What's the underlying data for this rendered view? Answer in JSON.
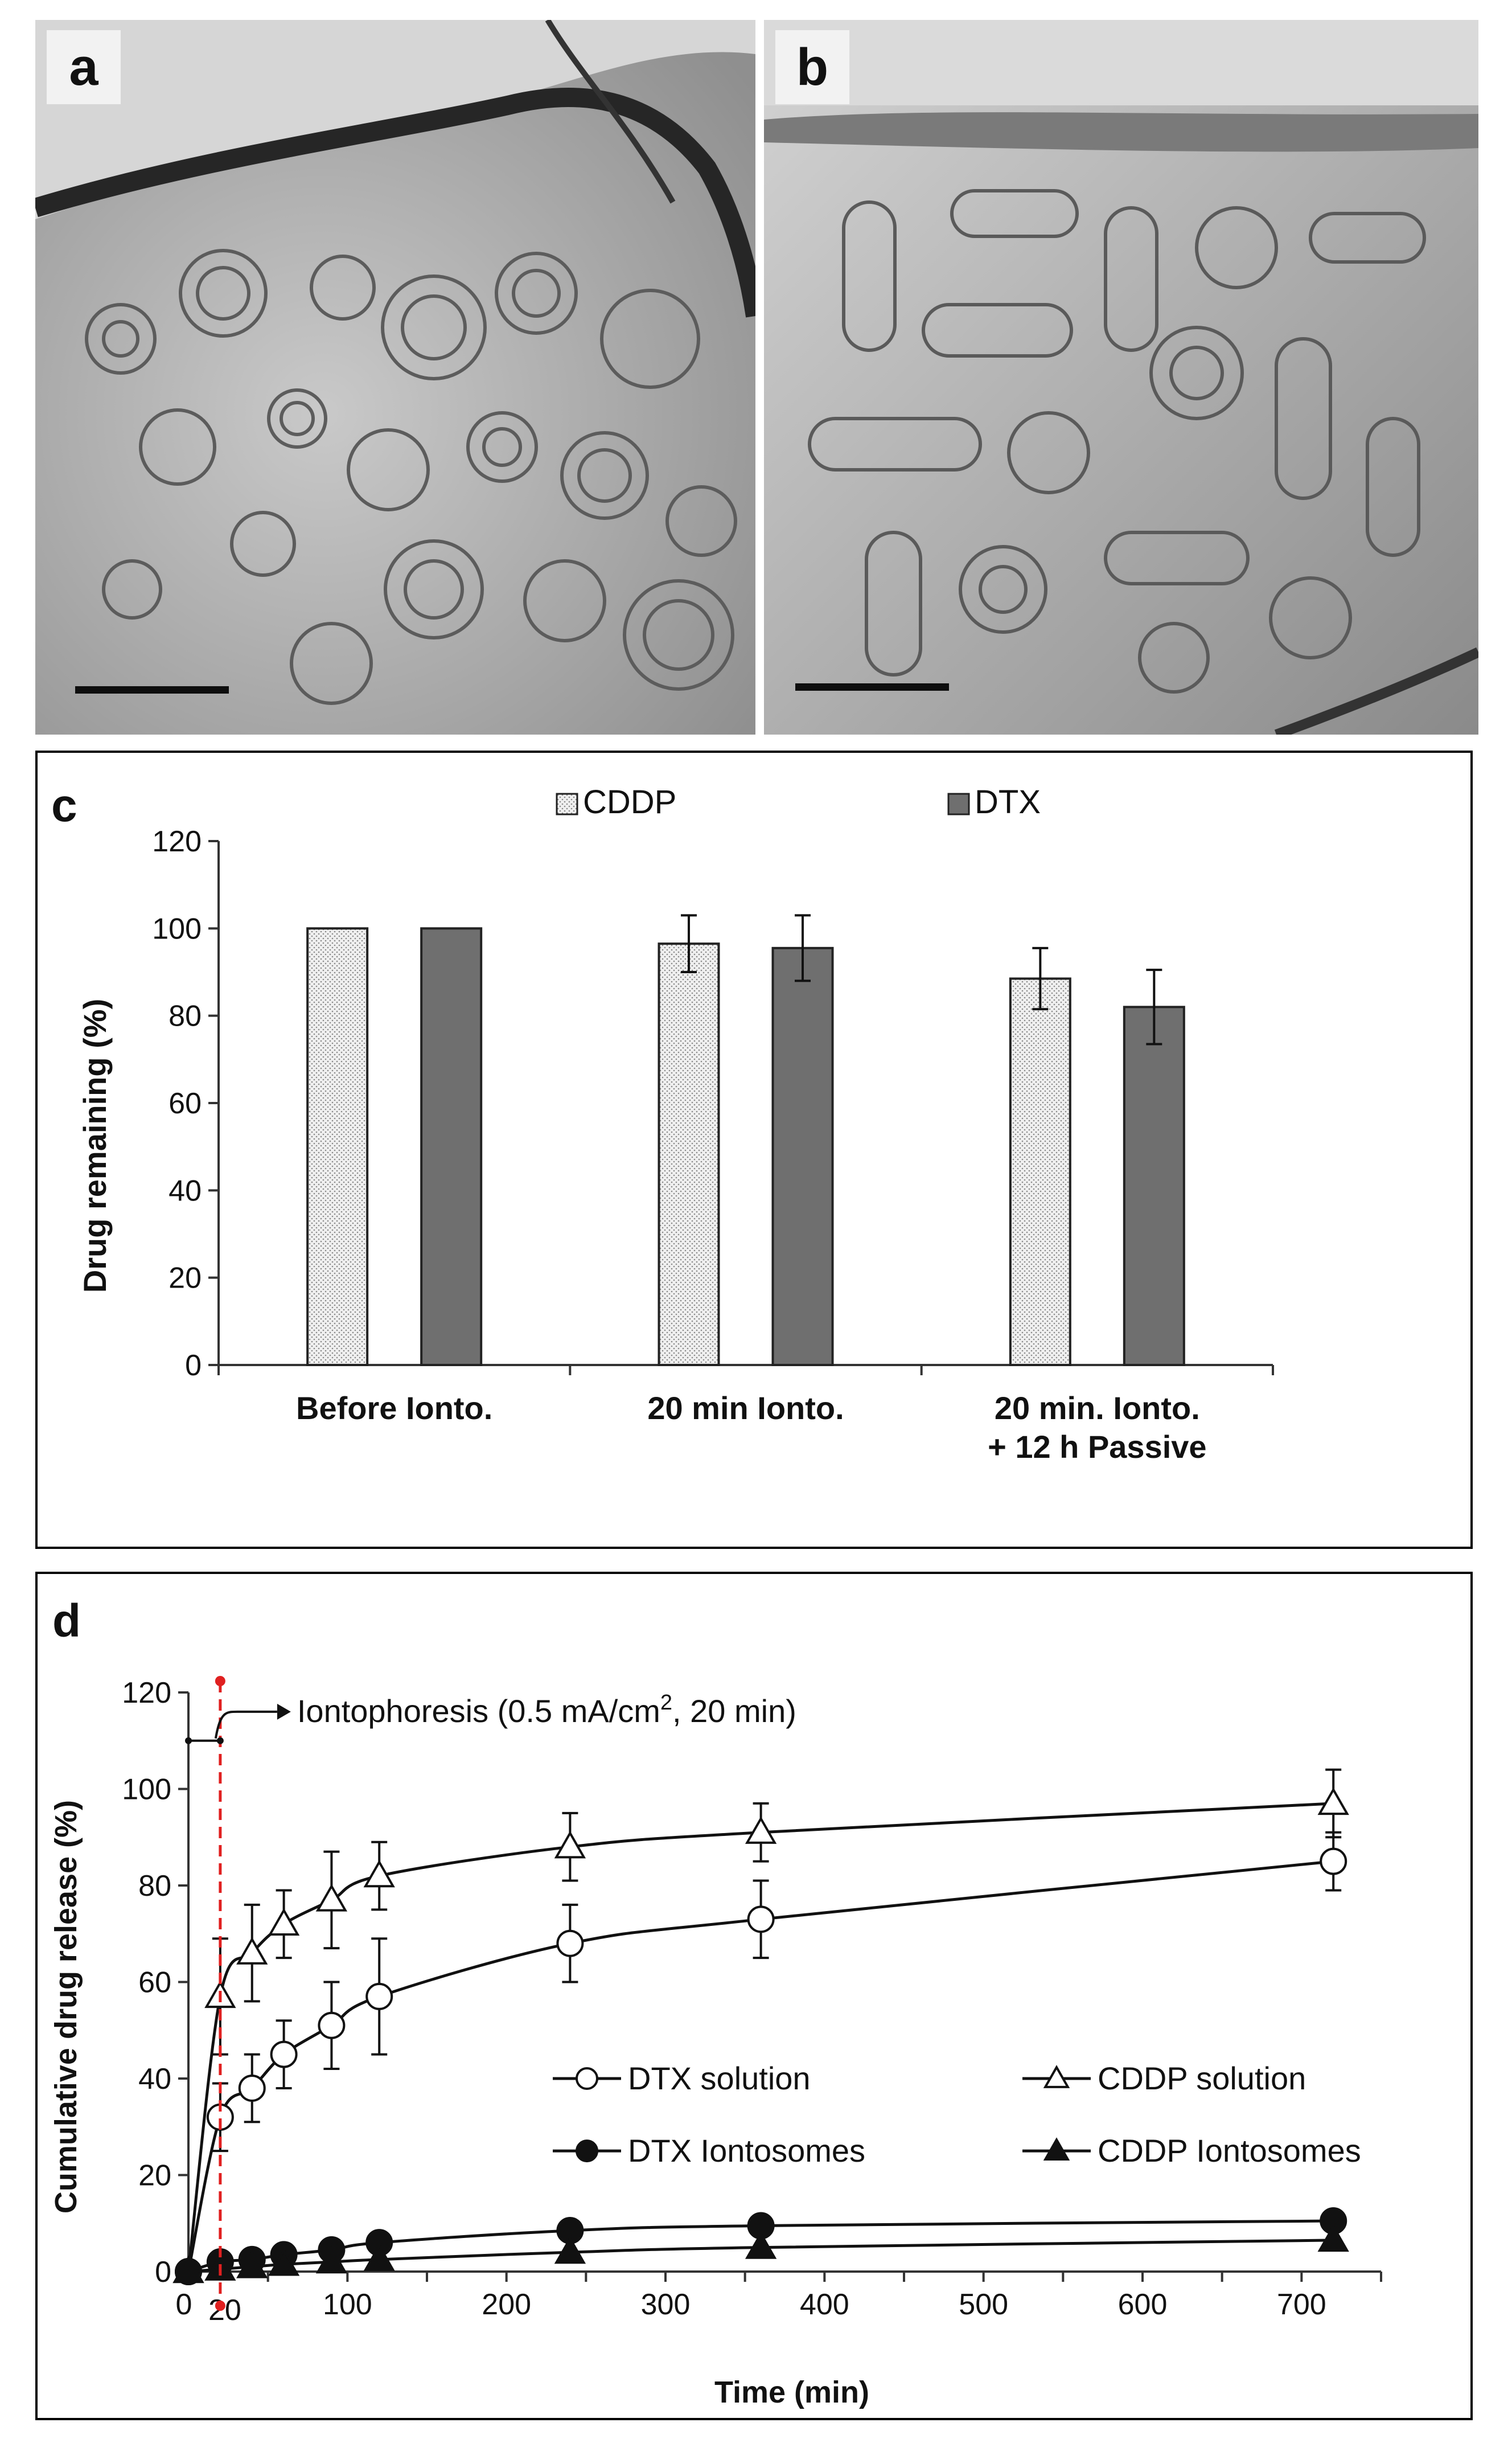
{
  "panels": {
    "a": {
      "label": "a"
    },
    "b": {
      "label": "b"
    },
    "c": {
      "label": "c"
    },
    "d": {
      "label": "d"
    }
  },
  "chart_data": [
    {
      "type": "bar",
      "panel": "c",
      "title": "",
      "xlabel": "",
      "ylabel": "Drug remaining (%)",
      "ylim": [
        0,
        120
      ],
      "yticks": [
        0,
        20,
        40,
        60,
        80,
        100,
        120
      ],
      "categories": [
        "Before Ionto.",
        "20 min Ionto.",
        "20 min. Ionto. + 12 h Passive"
      ],
      "category_lines": [
        [
          "Before Ionto."
        ],
        [
          "20 min Ionto."
        ],
        [
          "20 min. Ionto.",
          "+ 12 h Passive"
        ]
      ],
      "series": [
        {
          "name": "CDDP",
          "color": "#e8e8e8",
          "pattern": "dotted",
          "values": [
            100,
            96.5,
            88.5
          ],
          "errors": [
            0,
            6.5,
            7
          ]
        },
        {
          "name": "DTX",
          "color": "#6f6f6f",
          "pattern": "solid",
          "values": [
            100,
            95.5,
            82
          ],
          "errors": [
            0,
            7.5,
            8.5
          ]
        }
      ],
      "legend": "top",
      "grid": false
    },
    {
      "type": "line",
      "panel": "d",
      "title": "",
      "xlabel": "Time (min)",
      "ylabel": "Cumulative drug release (%)",
      "xlim": [
        0,
        750
      ],
      "ylim": [
        0,
        120
      ],
      "xticks": [
        0,
        100,
        200,
        300,
        400,
        500,
        600,
        700
      ],
      "xtick_labels": [
        "0",
        "100",
        "200",
        "300",
        "400",
        "500",
        "600",
        "700"
      ],
      "extra_xtick": {
        "value": 20,
        "label": "20"
      },
      "yticks": [
        0,
        20,
        40,
        60,
        80,
        100,
        120
      ],
      "annotation": {
        "prefix": "Iontophoresis (0.5 mA/cm",
        "sup": "2",
        "suffix": ",  20 min)"
      },
      "iontophoresis_end_time": 20,
      "series": [
        {
          "name": "DTX solution",
          "marker": "circle-open",
          "x": [
            0,
            20,
            40,
            60,
            90,
            120,
            240,
            360,
            720
          ],
          "y": [
            0,
            32,
            38,
            45,
            51,
            57,
            68,
            73,
            85
          ],
          "errors": [
            0,
            7,
            7,
            7,
            9,
            12,
            8,
            8,
            6
          ]
        },
        {
          "name": "CDDP solution",
          "marker": "triangle-open",
          "x": [
            0,
            20,
            40,
            60,
            90,
            120,
            240,
            360,
            720
          ],
          "y": [
            0,
            57,
            66,
            72,
            77,
            82,
            88,
            91,
            97
          ],
          "errors": [
            0,
            12,
            10,
            7,
            10,
            7,
            7,
            6,
            7
          ]
        },
        {
          "name": "DTX Iontosomes",
          "marker": "circle-filled",
          "x": [
            0,
            20,
            40,
            60,
            90,
            120,
            240,
            360,
            720
          ],
          "y": [
            0,
            2,
            2.5,
            3.5,
            4.5,
            6,
            8.5,
            9.5,
            10.5
          ],
          "errors": [
            0,
            0,
            0,
            0,
            0,
            0,
            0,
            0,
            0
          ]
        },
        {
          "name": "CDDP Iontosomes",
          "marker": "triangle-filled",
          "x": [
            0,
            20,
            40,
            60,
            90,
            120,
            240,
            360,
            720
          ],
          "y": [
            0,
            0.5,
            1,
            1.5,
            2,
            2.5,
            4,
            5,
            6.5
          ],
          "errors": [
            0,
            0,
            0,
            0,
            0,
            0,
            0,
            0,
            0
          ]
        }
      ],
      "legend": "center-right",
      "grid": false
    }
  ]
}
